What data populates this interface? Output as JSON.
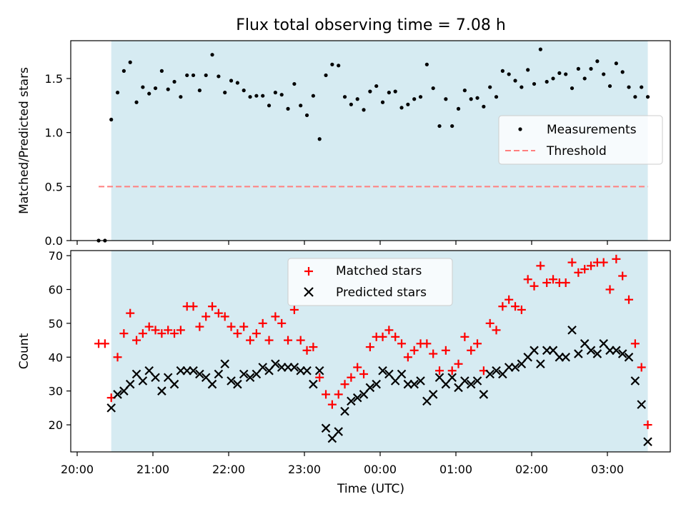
{
  "title": "Flux total observing time = 7.08 h",
  "colors": {
    "shade": "#add8e6",
    "measurement": "#000000",
    "threshold": "#ff7f7f",
    "matched": "#ff0000",
    "predicted": "#000000"
  },
  "chart_data": [
    {
      "type": "scatter",
      "ylabel": "Matched/Predicted stars",
      "ylim": [
        0,
        1.85
      ],
      "yticks": [
        "0.0",
        "0.5",
        "1.0",
        "1.5"
      ],
      "legend_position": "center-right",
      "shaded_interval": [
        "20:27",
        "03:32"
      ],
      "series": [
        {
          "name": "Measurements",
          "marker": "dot",
          "x": [
            "20:17",
            "20:22",
            "20:27",
            "20:32",
            "20:37",
            "20:42",
            "20:47",
            "20:52",
            "20:57",
            "21:02",
            "21:07",
            "21:12",
            "21:17",
            "21:22",
            "21:27",
            "21:32",
            "21:37",
            "21:42",
            "21:47",
            "21:52",
            "21:57",
            "22:02",
            "22:07",
            "22:12",
            "22:17",
            "22:22",
            "22:27",
            "22:32",
            "22:37",
            "22:42",
            "22:47",
            "22:52",
            "22:57",
            "23:02",
            "23:07",
            "23:12",
            "23:17",
            "23:22",
            "23:27",
            "23:32",
            "23:37",
            "23:42",
            "23:47",
            "23:52",
            "23:57",
            "00:02",
            "00:07",
            "00:12",
            "00:17",
            "00:22",
            "00:27",
            "00:32",
            "00:37",
            "00:42",
            "00:47",
            "00:52",
            "00:57",
            "01:02",
            "01:07",
            "01:12",
            "01:17",
            "01:22",
            "01:27",
            "01:32",
            "01:37",
            "01:42",
            "01:47",
            "01:52",
            "01:57",
            "02:02",
            "02:07",
            "02:12",
            "02:17",
            "02:22",
            "02:27",
            "02:32",
            "02:37",
            "02:42",
            "02:47",
            "02:52",
            "02:57",
            "03:02",
            "03:07",
            "03:12",
            "03:17",
            "03:22",
            "03:27",
            "03:32"
          ],
          "y": [
            0.0,
            0.0,
            1.12,
            1.37,
            1.57,
            1.65,
            1.28,
            1.42,
            1.36,
            1.41,
            1.57,
            1.4,
            1.47,
            1.33,
            1.53,
            1.53,
            1.39,
            1.53,
            1.72,
            1.52,
            1.37,
            1.48,
            1.46,
            1.39,
            1.33,
            1.34,
            1.34,
            1.25,
            1.37,
            1.35,
            1.22,
            1.45,
            1.25,
            1.16,
            1.34,
            0.94,
            1.53,
            1.63,
            1.62,
            1.33,
            1.26,
            1.31,
            1.21,
            1.38,
            1.43,
            1.28,
            1.37,
            1.38,
            1.23,
            1.26,
            1.31,
            1.33,
            1.63,
            1.41,
            1.06,
            1.31,
            1.06,
            1.22,
            1.39,
            1.31,
            1.32,
            1.24,
            1.42,
            1.33,
            1.57,
            1.54,
            1.48,
            1.42,
            1.58,
            1.45,
            1.77,
            1.47,
            1.5,
            1.55,
            1.54,
            1.41,
            1.59,
            1.5,
            1.59,
            1.66,
            1.54,
            1.43,
            1.64,
            1.56,
            1.42,
            1.33,
            1.42,
            1.33
          ]
        },
        {
          "name": "Threshold",
          "marker": "dashed-line",
          "x": [
            "20:17",
            "03:32"
          ],
          "y": [
            0.5,
            0.5
          ]
        }
      ]
    },
    {
      "type": "scatter",
      "ylabel": "Count",
      "xlabel": "Time (UTC)",
      "ylim": [
        12,
        71.5
      ],
      "yticks": [
        "20",
        "30",
        "40",
        "50",
        "60",
        "70"
      ],
      "xticks": [
        "20:00",
        "21:00",
        "22:00",
        "23:00",
        "00:00",
        "01:00",
        "02:00",
        "03:00"
      ],
      "legend_position": "top-center",
      "shaded_interval": [
        "20:27",
        "03:32"
      ],
      "series": [
        {
          "name": "Matched stars",
          "marker": "plus",
          "x": [
            "20:17",
            "20:22",
            "20:27",
            "20:32",
            "20:37",
            "20:42",
            "20:47",
            "20:52",
            "20:57",
            "21:02",
            "21:07",
            "21:12",
            "21:17",
            "21:22",
            "21:27",
            "21:32",
            "21:37",
            "21:42",
            "21:47",
            "21:52",
            "21:57",
            "22:02",
            "22:07",
            "22:12",
            "22:17",
            "22:22",
            "22:27",
            "22:32",
            "22:37",
            "22:42",
            "22:47",
            "22:52",
            "22:57",
            "23:02",
            "23:07",
            "23:12",
            "23:17",
            "23:22",
            "23:27",
            "23:32",
            "23:37",
            "23:42",
            "23:47",
            "23:52",
            "23:57",
            "00:02",
            "00:07",
            "00:12",
            "00:17",
            "00:22",
            "00:27",
            "00:32",
            "00:37",
            "00:42",
            "00:47",
            "00:52",
            "00:57",
            "01:02",
            "01:07",
            "01:12",
            "01:17",
            "01:22",
            "01:27",
            "01:32",
            "01:37",
            "01:42",
            "01:47",
            "01:52",
            "01:57",
            "02:02",
            "02:07",
            "02:12",
            "02:17",
            "02:22",
            "02:27",
            "02:32",
            "02:37",
            "02:42",
            "02:47",
            "02:52",
            "02:57",
            "03:02",
            "03:07",
            "03:12",
            "03:17",
            "03:22",
            "03:27",
            "03:32"
          ],
          "y": [
            44,
            44,
            28,
            40,
            47,
            53,
            45,
            47,
            49,
            48,
            47,
            48,
            47,
            48,
            55,
            55,
            49,
            52,
            55,
            53,
            52,
            49,
            47,
            49,
            45,
            47,
            50,
            45,
            52,
            50,
            45,
            54,
            45,
            42,
            43,
            34,
            29,
            26,
            29,
            32,
            34,
            37,
            35,
            43,
            46,
            46,
            48,
            46,
            44,
            40,
            42,
            44,
            44,
            41,
            36,
            42,
            36,
            38,
            46,
            42,
            44,
            36,
            50,
            48,
            55,
            57,
            55,
            54,
            63,
            61,
            67,
            62,
            63,
            62,
            62,
            68,
            65,
            66,
            67,
            68,
            68,
            60,
            69,
            64,
            57,
            44,
            37,
            20
          ]
        },
        {
          "name": "Predicted stars",
          "marker": "x",
          "x": [
            "20:27",
            "20:32",
            "20:37",
            "20:42",
            "20:47",
            "20:52",
            "20:57",
            "21:02",
            "21:07",
            "21:12",
            "21:17",
            "21:22",
            "21:27",
            "21:32",
            "21:37",
            "21:42",
            "21:47",
            "21:52",
            "21:57",
            "22:02",
            "22:07",
            "22:12",
            "22:17",
            "22:22",
            "22:27",
            "22:32",
            "22:37",
            "22:42",
            "22:47",
            "22:52",
            "22:57",
            "23:02",
            "23:07",
            "23:12",
            "23:17",
            "23:22",
            "23:27",
            "23:32",
            "23:37",
            "23:42",
            "23:47",
            "23:52",
            "23:57",
            "00:02",
            "00:07",
            "00:12",
            "00:17",
            "00:22",
            "00:27",
            "00:32",
            "00:37",
            "00:42",
            "00:47",
            "00:52",
            "00:57",
            "01:02",
            "01:07",
            "01:12",
            "01:17",
            "01:22",
            "01:27",
            "01:32",
            "01:37",
            "01:42",
            "01:47",
            "01:52",
            "01:57",
            "02:02",
            "02:07",
            "02:12",
            "02:17",
            "02:22",
            "02:27",
            "02:32",
            "02:37",
            "02:42",
            "02:47",
            "02:52",
            "02:57",
            "03:02",
            "03:07",
            "03:12",
            "03:17",
            "03:22",
            "03:27",
            "03:32"
          ],
          "y": [
            25,
            29,
            30,
            32,
            35,
            33,
            36,
            34,
            30,
            34,
            32,
            36,
            36,
            36,
            35,
            34,
            32,
            35,
            38,
            33,
            32,
            35,
            34,
            35,
            37,
            36,
            38,
            37,
            37,
            37,
            36,
            36,
            32,
            36,
            19,
            16,
            18,
            24,
            27,
            28,
            29,
            31,
            32,
            36,
            35,
            33,
            35,
            32,
            32,
            33,
            27,
            29,
            34,
            32,
            34,
            31,
            33,
            32,
            33,
            29,
            35,
            36,
            35,
            37,
            37,
            38,
            40,
            42,
            38,
            42,
            42,
            40,
            40,
            48,
            41,
            44,
            42,
            41,
            44,
            42,
            42,
            41,
            40,
            33,
            26,
            15
          ]
        }
      ]
    }
  ]
}
